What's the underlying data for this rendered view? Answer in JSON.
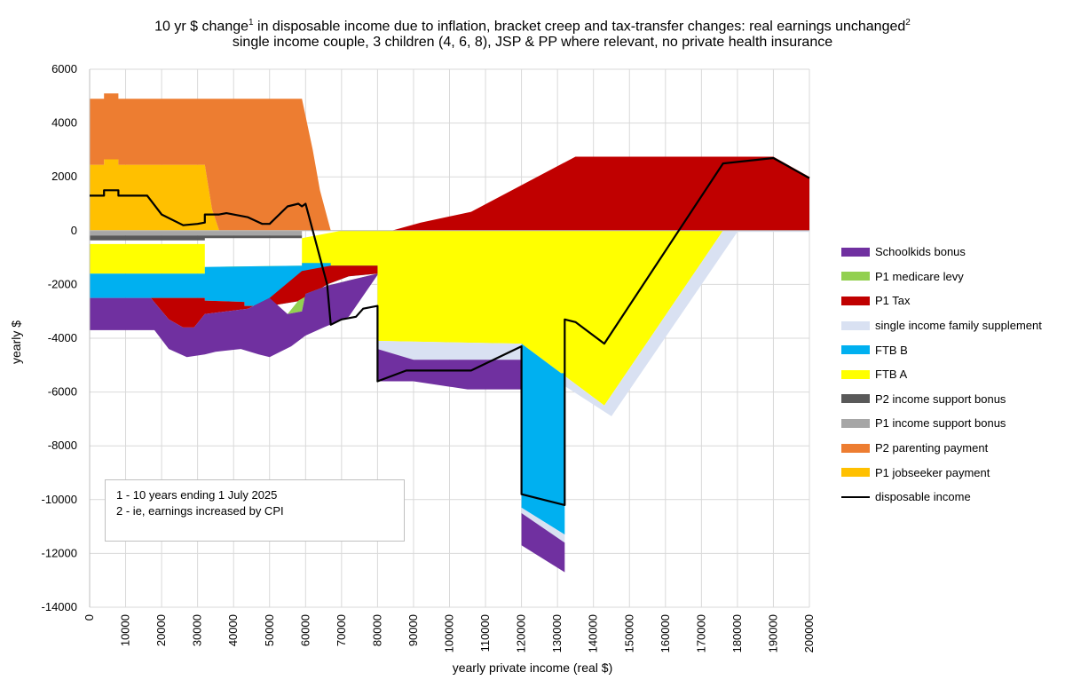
{
  "chart_data": {
    "type": "area",
    "title_line1": "10 yr $ change",
    "title_sup1": "1",
    "title_line1_rest": " in disposable income due to inflation, bracket creep and tax-transfer changes: real earnings unchanged",
    "title_sup2": "2",
    "title_line2": "single income couple, 3 children (4, 6, 8), JSP & PP where relevant, no private health insurance",
    "xlabel": "yearly private income (real $)",
    "ylabel": "yearly $",
    "xlim": [
      0,
      200000
    ],
    "ylim": [
      -14000,
      6000
    ],
    "x_ticks": [
      "0",
      "10000",
      "20000",
      "30000",
      "40000",
      "50000",
      "60000",
      "70000",
      "80000",
      "90000",
      "100000",
      "110000",
      "120000",
      "130000",
      "140000",
      "150000",
      "160000",
      "170000",
      "180000",
      "190000",
      "200000"
    ],
    "y_ticks": [
      "6000",
      "4000",
      "2000",
      "0",
      "-2000",
      "-4000",
      "-6000",
      "-8000",
      "-10000",
      "-12000",
      "-14000"
    ],
    "notes": [
      "1 - 10 years ending 1 July 2025",
      "2 - ie, earnings increased by CPI"
    ],
    "colors": {
      "schoolkids": "#7030A0",
      "medicare": "#92D050",
      "tax": "#C00000",
      "sifs": "#D9E1F2",
      "ftbb": "#00B0F0",
      "ftba": "#FFFF00",
      "p2isb": "#595959",
      "p1isb": "#A6A6A6",
      "parenting": "#ED7D31",
      "jobseeker": "#FFC000",
      "disposable": "#000000"
    },
    "legend": [
      {
        "key": "schoolkids",
        "label": "Schoolkids bonus"
      },
      {
        "key": "medicare",
        "label": "P1 medicare levy"
      },
      {
        "key": "tax",
        "label": "P1 Tax"
      },
      {
        "key": "sifs",
        "label": "single income family supplement"
      },
      {
        "key": "ftbb",
        "label": "FTB B"
      },
      {
        "key": "ftba",
        "label": "FTB A"
      },
      {
        "key": "p2isb",
        "label": "P2 income support bonus"
      },
      {
        "key": "p1isb",
        "label": "P1 income support bonus"
      },
      {
        "key": "parenting",
        "label": "P2 parenting payment"
      },
      {
        "key": "jobseeker",
        "label": "P1 jobseeker payment"
      },
      {
        "key": "disposable",
        "label": "disposable income",
        "line": true
      }
    ],
    "series": [
      {
        "name": "P1 jobseeker payment",
        "key": "jobseeker",
        "points": [
          [
            0,
            0
          ],
          [
            0,
            2450
          ],
          [
            4000,
            2450
          ],
          [
            4000,
            2650
          ],
          [
            8000,
            2650
          ],
          [
            8000,
            2450
          ],
          [
            32000,
            2450
          ],
          [
            34000,
            800
          ],
          [
            36000,
            0
          ]
        ]
      },
      {
        "name": "P2 parenting payment",
        "key": "parenting",
        "points": [
          [
            0,
            2450
          ],
          [
            0,
            4900
          ],
          [
            4000,
            4900
          ],
          [
            4000,
            5100
          ],
          [
            8000,
            5100
          ],
          [
            8000,
            4900
          ],
          [
            59000,
            4900
          ],
          [
            62000,
            3000
          ],
          [
            64000,
            1500
          ],
          [
            67000,
            0
          ],
          [
            36000,
            0
          ],
          [
            34000,
            800
          ],
          [
            32000,
            2450
          ],
          [
            8000,
            2450
          ],
          [
            8000,
            2650
          ],
          [
            4000,
            2650
          ],
          [
            4000,
            2450
          ]
        ]
      },
      {
        "name": "P1 income support bonus",
        "key": "p1isb",
        "points": [
          [
            0,
            0
          ],
          [
            59000,
            0
          ],
          [
            59000,
            -180
          ],
          [
            0,
            -180
          ]
        ]
      },
      {
        "name": "P2 income support bonus",
        "key": "p2isb",
        "points": [
          [
            0,
            -180
          ],
          [
            59000,
            -180
          ],
          [
            59000,
            -280
          ],
          [
            32000,
            -280
          ],
          [
            32000,
            -360
          ],
          [
            0,
            -360
          ]
        ]
      },
      {
        "name": "FTB A",
        "key": "ftba",
        "points": [
          [
            0,
            -500
          ],
          [
            32000,
            -500
          ],
          [
            32000,
            -1350
          ],
          [
            59000,
            -1350
          ],
          [
            59000,
            -280
          ],
          [
            70000,
            0
          ],
          [
            176000,
            0
          ],
          [
            143000,
            -6500
          ],
          [
            131000,
            -5300
          ],
          [
            120000,
            -4200
          ],
          [
            80000,
            -4100
          ],
          [
            80000,
            -1600
          ],
          [
            59000,
            -1300
          ],
          [
            32000,
            -1350
          ],
          [
            32000,
            -1600
          ],
          [
            0,
            -1600
          ]
        ]
      },
      {
        "name": "FTB B",
        "key": "ftbb",
        "points": [
          [
            0,
            -1600
          ],
          [
            32000,
            -1600
          ],
          [
            32000,
            -1350
          ],
          [
            59000,
            -1300
          ],
          [
            59000,
            -1200
          ],
          [
            67000,
            -1200
          ],
          [
            67000,
            -1300
          ],
          [
            80000,
            -1300
          ],
          [
            80000,
            -1600
          ],
          [
            72000,
            -1700
          ],
          [
            66000,
            -2000
          ],
          [
            59000,
            -2600
          ],
          [
            50000,
            -2800
          ],
          [
            43000,
            -2800
          ],
          [
            43000,
            -2650
          ],
          [
            32000,
            -2600
          ],
          [
            32000,
            -2500
          ],
          [
            0,
            -2500
          ]
        ]
      },
      {
        "name": "P1 Tax",
        "key": "tax",
        "points": [
          [
            17000,
            -2500
          ],
          [
            32000,
            -2500
          ],
          [
            32000,
            -2600
          ],
          [
            43000,
            -2650
          ],
          [
            43000,
            -2800
          ],
          [
            50000,
            -2800
          ],
          [
            59000,
            -2600
          ],
          [
            66000,
            -2000
          ],
          [
            72000,
            -1700
          ],
          [
            80000,
            -1600
          ],
          [
            80000,
            -1300
          ],
          [
            67000,
            -1300
          ],
          [
            59000,
            -1500
          ],
          [
            50000,
            -2500
          ],
          [
            44000,
            -2900
          ],
          [
            32000,
            -3100
          ],
          [
            29000,
            -3600
          ],
          [
            26000,
            -3600
          ],
          [
            22000,
            -3300
          ]
        ]
      },
      {
        "name": "P1 Tax (upper)",
        "key": "tax",
        "points": [
          [
            83000,
            0
          ],
          [
            84000,
            0
          ],
          [
            92000,
            300
          ],
          [
            106000,
            700
          ],
          [
            135000,
            2750
          ],
          [
            190000,
            2750
          ],
          [
            200000,
            2000
          ],
          [
            200000,
            0
          ]
        ]
      },
      {
        "name": "P1 medicare levy",
        "key": "medicare",
        "points": [
          [
            59000,
            -3000
          ],
          [
            55000,
            -3100
          ],
          [
            58000,
            -2600
          ],
          [
            62000,
            -2300
          ],
          [
            70000,
            -2000
          ],
          [
            78000,
            -1700
          ],
          [
            80000,
            -1600
          ],
          [
            72000,
            -1850
          ],
          [
            66000,
            -2050
          ],
          [
            60000,
            -2350
          ]
        ]
      },
      {
        "name": "single income family supplement",
        "key": "sifs",
        "points": [
          [
            80000,
            -4100
          ],
          [
            120000,
            -4200
          ],
          [
            131000,
            -5300
          ],
          [
            143000,
            -6500
          ],
          [
            176000,
            0
          ],
          [
            200000,
            0
          ],
          [
            200000,
            -50
          ],
          [
            180000,
            -50
          ],
          [
            145000,
            -6900
          ],
          [
            130000,
            -5600
          ],
          [
            120000,
            -4400
          ],
          [
            120000,
            -4800
          ],
          [
            90000,
            -4800
          ],
          [
            80000,
            -4400
          ]
        ]
      },
      {
        "name": "Schoolkids bonus",
        "key": "schoolkids",
        "points": [
          [
            0,
            -2500
          ],
          [
            17000,
            -2500
          ],
          [
            22000,
            -3300
          ],
          [
            26000,
            -3600
          ],
          [
            29000,
            -3600
          ],
          [
            32000,
            -3100
          ],
          [
            44000,
            -2900
          ],
          [
            50000,
            -2500
          ],
          [
            55000,
            -3100
          ],
          [
            59000,
            -3000
          ],
          [
            60000,
            -2350
          ],
          [
            66000,
            -2050
          ],
          [
            72000,
            -1850
          ],
          [
            80000,
            -1600
          ],
          [
            80000,
            -1650
          ],
          [
            72000,
            -3200
          ],
          [
            65000,
            -3600
          ],
          [
            60000,
            -3900
          ],
          [
            56000,
            -4300
          ],
          [
            50000,
            -4700
          ],
          [
            47000,
            -4600
          ],
          [
            42000,
            -4400
          ],
          [
            35000,
            -4500
          ],
          [
            32000,
            -4600
          ],
          [
            27000,
            -4700
          ],
          [
            22000,
            -4400
          ],
          [
            18000,
            -3700
          ],
          [
            0,
            -3700
          ]
        ]
      },
      {
        "name": "Schoolkids bonus (mid)",
        "key": "schoolkids",
        "points": [
          [
            80000,
            -4400
          ],
          [
            90000,
            -4800
          ],
          [
            120000,
            -4800
          ],
          [
            120000,
            -5900
          ],
          [
            105000,
            -5900
          ],
          [
            90000,
            -5600
          ],
          [
            80000,
            -5600
          ]
        ]
      },
      {
        "name": "FTB B (spike)",
        "key": "ftbb",
        "points": [
          [
            120000,
            -4200
          ],
          [
            131000,
            -5300
          ],
          [
            132000,
            -5300
          ],
          [
            132000,
            -11300
          ],
          [
            120000,
            -10300
          ]
        ]
      },
      {
        "name": "single income family supplement (spike)",
        "key": "sifs",
        "points": [
          [
            120000,
            -10300
          ],
          [
            132000,
            -11300
          ],
          [
            132000,
            -11600
          ],
          [
            120000,
            -10500
          ]
        ]
      },
      {
        "name": "Schoolkids bonus (spike)",
        "key": "schoolkids",
        "points": [
          [
            120000,
            -10500
          ],
          [
            132000,
            -11600
          ],
          [
            132000,
            -12700
          ],
          [
            120000,
            -11700
          ]
        ]
      }
    ],
    "disposable_income": [
      [
        0,
        1300
      ],
      [
        4000,
        1300
      ],
      [
        4000,
        1500
      ],
      [
        8000,
        1500
      ],
      [
        8000,
        1300
      ],
      [
        16000,
        1300
      ],
      [
        20000,
        600
      ],
      [
        26000,
        200
      ],
      [
        30000,
        250
      ],
      [
        32000,
        300
      ],
      [
        32000,
        600
      ],
      [
        36000,
        600
      ],
      [
        38000,
        650
      ],
      [
        44000,
        500
      ],
      [
        48000,
        250
      ],
      [
        50000,
        250
      ],
      [
        55000,
        900
      ],
      [
        58000,
        1000
      ],
      [
        59000,
        900
      ],
      [
        60000,
        1000
      ],
      [
        61000,
        500
      ],
      [
        66000,
        -2000
      ],
      [
        67000,
        -3500
      ],
      [
        70000,
        -3300
      ],
      [
        74000,
        -3200
      ],
      [
        76000,
        -2900
      ],
      [
        80000,
        -2800
      ],
      [
        80000,
        -5600
      ],
      [
        88000,
        -5200
      ],
      [
        106000,
        -5200
      ],
      [
        120000,
        -4300
      ],
      [
        120000,
        -9800
      ],
      [
        132000,
        -10200
      ],
      [
        132000,
        -3300
      ],
      [
        135000,
        -3400
      ],
      [
        143000,
        -4200
      ],
      [
        176000,
        2500
      ],
      [
        190000,
        2700
      ],
      [
        200000,
        1950
      ]
    ]
  }
}
